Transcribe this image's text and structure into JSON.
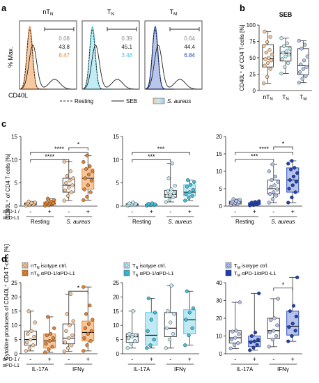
{
  "panel_letters": [
    "a",
    "b",
    "c",
    "d"
  ],
  "colors": {
    "nTN": "#e8822d",
    "nTN_light": "#f6c79b",
    "TN": "#3ec3dc",
    "TN_light": "#bfeaf3",
    "TM": "#1e3fb8",
    "TM_light": "#b5c3ec"
  },
  "panel_a": {
    "y_label": "% Max.",
    "x_label": "CD40L",
    "histograms": [
      {
        "title_main": "nT",
        "title_sub": "N",
        "color_key": "nTN",
        "values": [
          "0.08",
          "43.8",
          "6.47"
        ]
      },
      {
        "title_main": "T",
        "title_sub": "N",
        "color_key": "TN",
        "values": [
          "0.39",
          "45.1",
          "3.48"
        ]
      },
      {
        "title_main": "T",
        "title_sub": "M",
        "color_key": "TM",
        "values": [
          "0.64",
          "44.4",
          "6.84"
        ]
      }
    ],
    "legend": {
      "resting": "Resting",
      "seb": "SEB",
      "saureus": "S. aureus"
    }
  },
  "chart_data": [
    {
      "type": "box",
      "panel": "b",
      "title": "SEB",
      "ylabel": "CD40L⁺ of CD4 T-cells [%]",
      "ylim": [
        0,
        100
      ],
      "yticks": [
        0,
        25,
        50,
        75,
        100
      ],
      "categories": [
        {
          "main": "nT",
          "sub": "N"
        },
        {
          "main": "T",
          "sub": "N"
        },
        {
          "main": "T",
          "sub": "M"
        }
      ],
      "boxes": [
        {
          "color_key": "nTN",
          "min": 11,
          "q1": 36,
          "median": 49,
          "q3": 70,
          "max": 90,
          "points": [
            11,
            21,
            33,
            38,
            42,
            46,
            48,
            50,
            55,
            58,
            62,
            68,
            74,
            82,
            90
          ]
        },
        {
          "color_key": "TN",
          "min": 26,
          "q1": 45,
          "median": 57,
          "q3": 67,
          "max": 80,
          "points": [
            26,
            36,
            42,
            48,
            52,
            55,
            58,
            60,
            64,
            68,
            72,
            80
          ]
        },
        {
          "color_key": "TM",
          "min": 12,
          "q1": 24,
          "median": 38,
          "q3": 64,
          "max": 76,
          "points": [
            12,
            18,
            22,
            28,
            33,
            36,
            40,
            46,
            52,
            64,
            70,
            76
          ]
        }
      ]
    },
    {
      "type": "box",
      "panel": "c1",
      "ylabel": "CD40L⁺ of CD4 T-cells [%]",
      "ylim": [
        0,
        15
      ],
      "yticks": [
        0,
        5,
        10,
        15
      ],
      "x_signs": [
        "-",
        "+",
        "-",
        "+"
      ],
      "groups": [
        "Resting",
        "S. aureus"
      ],
      "row_labels": [
        "αPD-1 /",
        "αPD-L1"
      ],
      "color_key": "nTN",
      "boxes": [
        {
          "treated": false,
          "min": 0.1,
          "q1": 0.3,
          "median": 0.5,
          "q3": 0.7,
          "max": 1.0,
          "points": [
            0.1,
            0.2,
            0.3,
            0.4,
            0.5,
            0.5,
            0.6,
            0.7,
            0.8,
            1.0
          ]
        },
        {
          "treated": true,
          "min": 0.1,
          "q1": 0.3,
          "median": 0.6,
          "q3": 0.9,
          "max": 1.6,
          "points": [
            0.1,
            0.2,
            0.4,
            0.5,
            0.6,
            0.7,
            0.8,
            1.0,
            1.3,
            1.6
          ]
        },
        {
          "treated": false,
          "min": 1.2,
          "q1": 3.0,
          "median": 4.5,
          "q3": 6.0,
          "max": 9.6,
          "points": [
            1.2,
            2.2,
            3.0,
            3.4,
            4.0,
            4.5,
            5.0,
            5.5,
            6.0,
            6.5,
            7.5,
            9.6
          ]
        },
        {
          "treated": true,
          "min": 1.3,
          "q1": 3.6,
          "median": 6.0,
          "q3": 8.0,
          "max": 10.9,
          "points": [
            1.3,
            2.0,
            3.0,
            3.6,
            4.5,
            5.5,
            6.0,
            6.8,
            7.5,
            8.0,
            8.6,
            9.5,
            10.9
          ]
        }
      ],
      "significance": [
        {
          "from": 2,
          "to": 3,
          "level": 12.6,
          "label": "*"
        },
        {
          "from": 0,
          "to": 3,
          "level": 11.6,
          "label": "****"
        },
        {
          "from": 0,
          "to": 2,
          "level": 10.0,
          "label": "****"
        }
      ]
    },
    {
      "type": "box",
      "panel": "c2",
      "ylim": [
        0,
        15
      ],
      "yticks": [
        0,
        5,
        10,
        15
      ],
      "x_signs": [
        "-",
        "+",
        "-",
        "+"
      ],
      "groups": [
        "Resting",
        "S. aureus"
      ],
      "color_key": "TN",
      "boxes": [
        {
          "treated": false,
          "min": 0.1,
          "q1": 0.2,
          "median": 0.3,
          "q3": 0.5,
          "max": 0.8,
          "points": [
            0.1,
            0.2,
            0.2,
            0.3,
            0.4,
            0.5,
            0.6,
            0.8
          ]
        },
        {
          "treated": true,
          "min": 0.1,
          "q1": 0.2,
          "median": 0.3,
          "q3": 0.4,
          "max": 0.6,
          "points": [
            0.1,
            0.2,
            0.2,
            0.3,
            0.3,
            0.4,
            0.5,
            0.6
          ]
        },
        {
          "treated": false,
          "min": 0.9,
          "q1": 1.9,
          "median": 2.5,
          "q3": 3.4,
          "max": 9.2,
          "points": [
            0.9,
            1.4,
            1.9,
            2.2,
            2.5,
            2.8,
            3.2,
            3.6,
            4.4,
            6.0,
            9.2
          ]
        },
        {
          "treated": true,
          "min": 1.2,
          "q1": 2.2,
          "median": 3.0,
          "q3": 4.6,
          "max": 5.6,
          "points": [
            1.2,
            1.8,
            2.2,
            2.6,
            3.0,
            3.5,
            4.2,
            4.6,
            5.2,
            5.6
          ]
        }
      ],
      "significance": [
        {
          "from": 0,
          "to": 3,
          "level": 11.6,
          "label": "***"
        },
        {
          "from": 0,
          "to": 2,
          "level": 10.0,
          "label": "***"
        }
      ]
    },
    {
      "type": "box",
      "panel": "c3",
      "ylim": [
        0,
        20
      ],
      "yticks": [
        0,
        5,
        10,
        15,
        20
      ],
      "x_signs": [
        "-",
        "+",
        "-",
        "+"
      ],
      "groups": [
        "Resting",
        "S. aureus"
      ],
      "color_key": "TM",
      "boxes": [
        {
          "treated": false,
          "min": 0.3,
          "q1": 0.6,
          "median": 1.0,
          "q3": 1.4,
          "max": 2.0,
          "points": [
            0.3,
            0.5,
            0.7,
            0.9,
            1.0,
            1.1,
            1.3,
            1.5,
            1.8,
            2.0
          ]
        },
        {
          "treated": true,
          "min": 0.2,
          "q1": 0.4,
          "median": 0.7,
          "q3": 1.0,
          "max": 1.4,
          "points": [
            0.2,
            0.3,
            0.5,
            0.6,
            0.7,
            0.8,
            1.0,
            1.2,
            1.4
          ]
        },
        {
          "treated": false,
          "min": 1.0,
          "q1": 3.5,
          "median": 5.0,
          "q3": 7.5,
          "max": 12.0,
          "points": [
            1.0,
            2.0,
            3.0,
            3.5,
            4.0,
            4.8,
            5.5,
            6.0,
            7.0,
            7.5,
            8.5,
            10.0,
            12.0
          ]
        },
        {
          "treated": true,
          "min": 1.0,
          "q1": 4.0,
          "median": 7.5,
          "q3": 11.0,
          "max": 13.0,
          "points": [
            1.0,
            2.5,
            4.0,
            5.0,
            6.0,
            7.0,
            7.5,
            8.5,
            9.5,
            10.5,
            11.0,
            12.2,
            13.0
          ]
        }
      ],
      "significance": [
        {
          "from": 2,
          "to": 3,
          "level": 17.0,
          "label": "*"
        },
        {
          "from": 0,
          "to": 3,
          "level": 15.5,
          "label": "****"
        },
        {
          "from": 0,
          "to": 2,
          "level": 13.4,
          "label": "***"
        }
      ]
    },
    {
      "type": "box",
      "panel": "d1",
      "ylabel": "Cytokine producers of CD40L⁺ CD4 T-cells [%]",
      "ylim": [
        0,
        25
      ],
      "yticks": [
        0,
        5,
        10,
        15,
        20,
        25
      ],
      "x_signs": [
        "-",
        "+",
        "-",
        "+"
      ],
      "groups": [
        "IL-17A",
        "IFNγ"
      ],
      "row_labels": [
        "αPD-1 /",
        "αPD-L1"
      ],
      "color_key": "nTN",
      "legend": [
        {
          "main": "nT",
          "sub": "N",
          "rest": " isotype ctrl.",
          "treated": false
        },
        {
          "main": "nT",
          "sub": "N",
          "rest": " αPD-1/αPD-L1",
          "treated": true
        }
      ],
      "boxes": [
        {
          "treated": false,
          "min": 1.0,
          "q1": 3.0,
          "median": 5.0,
          "q3": 8.0,
          "max": 15.0,
          "points": [
            1.0,
            2.0,
            3.0,
            4.0,
            5.0,
            6.0,
            7.0,
            8.0,
            11.0,
            15.0
          ]
        },
        {
          "treated": true,
          "min": 0.5,
          "q1": 2.0,
          "median": 4.5,
          "q3": 7.0,
          "max": 13.0,
          "points": [
            0.5,
            1.5,
            2.5,
            3.5,
            4.5,
            5.5,
            6.5,
            7.0,
            9.0,
            13.0
          ]
        },
        {
          "treated": false,
          "min": 0.8,
          "q1": 3.5,
          "median": 5.5,
          "q3": 10.5,
          "max": 21.0,
          "points": [
            0.8,
            2.0,
            3.0,
            4.0,
            5.5,
            6.5,
            8.0,
            10.0,
            11.5,
            14.0,
            21.0
          ]
        },
        {
          "treated": true,
          "min": 1.0,
          "q1": 4.5,
          "median": 7.5,
          "q3": 11.5,
          "max": 23.5,
          "points": [
            1.0,
            3.0,
            4.5,
            5.5,
            7.0,
            8.0,
            9.0,
            10.5,
            12.0,
            14.0,
            17.0,
            23.5
          ]
        }
      ],
      "significance": [
        {
          "from": 2,
          "to": 3,
          "level": 22.0,
          "label": "*"
        }
      ]
    },
    {
      "type": "box",
      "panel": "d2",
      "ylim": [
        0,
        25
      ],
      "yticks": [
        0,
        5,
        10,
        15,
        20,
        25
      ],
      "x_signs": [
        "-",
        "+",
        "-",
        "+"
      ],
      "groups": [
        "IL-17A",
        "IFNγ"
      ],
      "color_key": "TN",
      "legend": [
        {
          "main": "T",
          "sub": "N",
          "rest": " isotype ctrl.",
          "treated": false
        },
        {
          "main": "T",
          "sub": "N",
          "rest": " αPD-1/αPD-L1",
          "treated": true
        }
      ],
      "boxes": [
        {
          "treated": false,
          "min": 2.0,
          "q1": 4.0,
          "median": 6.0,
          "q3": 7.0,
          "max": 15.0,
          "points": [
            2.0,
            3.5,
            4.5,
            5.5,
            6.0,
            6.5,
            7.0,
            15.0
          ]
        },
        {
          "treated": true,
          "min": 2.0,
          "q1": 3.0,
          "median": 6.5,
          "q3": 14.5,
          "max": 19.5,
          "points": [
            2.0,
            3.0,
            5.0,
            8.0,
            12.0,
            14.5,
            19.5
          ]
        },
        {
          "treated": false,
          "min": 2.0,
          "q1": 6.0,
          "median": 9.0,
          "q3": 14.5,
          "max": 24.0,
          "points": [
            2.0,
            5.0,
            7.0,
            9.0,
            11.0,
            14.0,
            15.0,
            24.0
          ]
        },
        {
          "treated": true,
          "min": 3.0,
          "q1": 7.0,
          "median": 12.0,
          "q3": 15.5,
          "max": 22.0,
          "points": [
            3.0,
            6.5,
            9.0,
            12.0,
            14.5,
            16.0,
            22.0
          ]
        }
      ]
    },
    {
      "type": "box",
      "panel": "d3",
      "ylim": [
        0,
        40
      ],
      "yticks": [
        0,
        10,
        20,
        30,
        40
      ],
      "x_signs": [
        "-",
        "+",
        "-",
        "+"
      ],
      "groups": [
        "IL-17A",
        "IFNγ"
      ],
      "color_key": "TM",
      "legend": [
        {
          "main": "T",
          "sub": "M",
          "rest": " isotype ctrl.",
          "treated": false
        },
        {
          "main": "T",
          "sub": "M",
          "rest": " αPD-1/αPD-L1",
          "treated": true
        }
      ],
      "boxes": [
        {
          "treated": false,
          "min": 3.0,
          "q1": 6.0,
          "median": 9.0,
          "q3": 13.0,
          "max": 29.0,
          "points": [
            3.0,
            5.0,
            6.0,
            8.0,
            9.0,
            11.0,
            12.5,
            13.0,
            29.0
          ]
        },
        {
          "treated": true,
          "min": 2.0,
          "q1": 4.0,
          "median": 7.0,
          "q3": 10.0,
          "max": 34.0,
          "points": [
            2.0,
            3.5,
            5.0,
            6.5,
            7.0,
            8.0,
            10.0,
            12.0,
            34.0
          ]
        },
        {
          "treated": false,
          "min": 4.0,
          "q1": 8.5,
          "median": 13.0,
          "q3": 20.0,
          "max": 31.0,
          "points": [
            4.0,
            8.0,
            10.0,
            12.0,
            13.0,
            16.0,
            19.0,
            20.0,
            31.0
          ]
        },
        {
          "treated": true,
          "min": 7.0,
          "q1": 10.5,
          "median": 15.5,
          "q3": 24.0,
          "max": 43.0,
          "points": [
            7.0,
            10.0,
            13.0,
            15.0,
            17.0,
            21.0,
            24.0,
            27.0,
            43.0
          ]
        }
      ],
      "significance": [
        {
          "from": 2,
          "to": 3,
          "level": 37.0,
          "label": "*"
        }
      ]
    }
  ]
}
